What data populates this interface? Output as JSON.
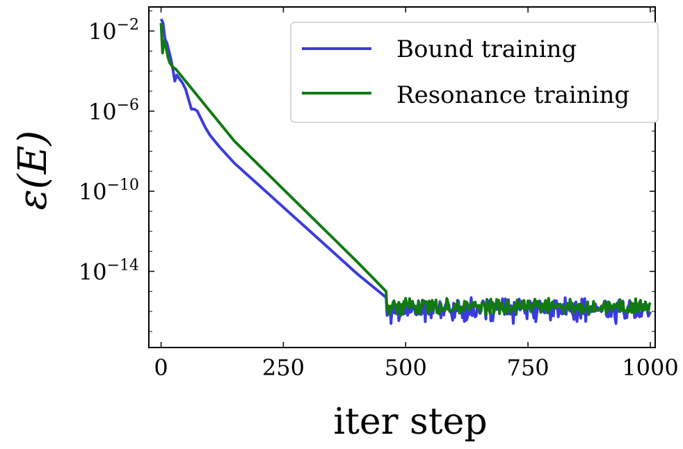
{
  "chart_data": {
    "type": "line",
    "title": "",
    "xlabel": "iter step",
    "ylabel": "ε(E)",
    "xlim": [
      -25,
      1010
    ],
    "ylim_log10": [
      -17.8,
      -0.8
    ],
    "yscale": "log",
    "grid": false,
    "legend_position": "top-right",
    "x_ticks": [
      {
        "value": 0,
        "label": "0"
      },
      {
        "value": 250,
        "label": "250"
      },
      {
        "value": 500,
        "label": "500"
      },
      {
        "value": 750,
        "label": "750"
      },
      {
        "value": 1000,
        "label": "1000"
      }
    ],
    "y_ticks": [
      {
        "value": -2,
        "base": "10",
        "exp": "−2"
      },
      {
        "value": -6,
        "base": "10",
        "exp": "−6"
      },
      {
        "value": -10,
        "base": "10",
        "exp": "−10"
      },
      {
        "value": -14,
        "base": "10",
        "exp": "−14"
      }
    ],
    "series": [
      {
        "name": "Bound training",
        "color": "#3b3bdc",
        "x_log10_points": [
          [
            0,
            -1.4
          ],
          [
            4,
            -1.6
          ],
          [
            8,
            -2.4
          ],
          [
            12,
            -2.6
          ],
          [
            16,
            -3.0
          ],
          [
            20,
            -3.4
          ],
          [
            24,
            -3.9
          ],
          [
            28,
            -4.5
          ],
          [
            32,
            -4.2
          ],
          [
            38,
            -4.4
          ],
          [
            44,
            -4.6
          ],
          [
            50,
            -4.9
          ],
          [
            56,
            -5.4
          ],
          [
            62,
            -5.9
          ],
          [
            68,
            -5.9
          ],
          [
            74,
            -6.0
          ],
          [
            80,
            -6.3
          ],
          [
            90,
            -6.8
          ],
          [
            100,
            -7.2
          ],
          [
            120,
            -7.8
          ],
          [
            150,
            -8.6
          ],
          [
            200,
            -9.7
          ],
          [
            250,
            -10.8
          ],
          [
            300,
            -11.9
          ],
          [
            350,
            -13.0
          ],
          [
            400,
            -14.1
          ],
          [
            440,
            -14.9
          ],
          [
            460,
            -15.3
          ]
        ],
        "noise_from": 460,
        "noise_mean": -15.9,
        "noise_amp": 0.65,
        "spikes": [
          [
            470,
            -16.6
          ],
          [
            485,
            -17.3
          ],
          [
            505,
            -16.7
          ],
          [
            620,
            -16.5
          ],
          [
            720,
            -16.6
          ],
          [
            850,
            -16.5
          ],
          [
            930,
            -16.6
          ]
        ]
      },
      {
        "name": "Resonance training",
        "color": "#117a11",
        "x_log10_points": [
          [
            0,
            -1.6
          ],
          [
            3,
            -3.1
          ],
          [
            6,
            -2.5
          ],
          [
            10,
            -2.8
          ],
          [
            14,
            -3.3
          ],
          [
            18,
            -3.6
          ],
          [
            24,
            -3.8
          ],
          [
            30,
            -3.9
          ],
          [
            40,
            -4.2
          ],
          [
            60,
            -4.8
          ],
          [
            100,
            -6.0
          ],
          [
            150,
            -7.5
          ],
          [
            200,
            -8.7
          ],
          [
            250,
            -9.9
          ],
          [
            300,
            -11.1
          ],
          [
            350,
            -12.3
          ],
          [
            400,
            -13.5
          ],
          [
            440,
            -14.5
          ],
          [
            460,
            -15.0
          ]
        ],
        "noise_from": 460,
        "noise_mean": -15.75,
        "noise_amp": 0.45,
        "spikes": []
      }
    ]
  }
}
